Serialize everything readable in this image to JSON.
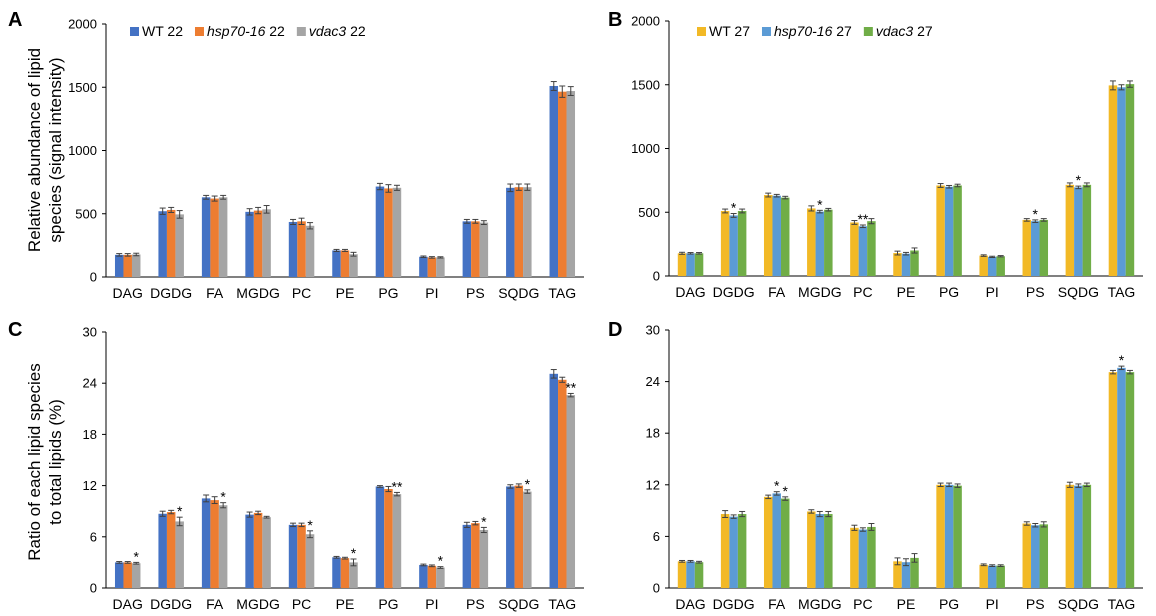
{
  "chart_data": [
    {
      "panel": "A",
      "type": "bar",
      "ylabel_lines": [
        "Relative abundance of lipid",
        "species (signal intensity)"
      ],
      "ylim": [
        0,
        2000
      ],
      "yticks": [
        0,
        500,
        1000,
        1500,
        2000
      ],
      "categories": [
        "DAG",
        "DGDG",
        "FA",
        "MGDG",
        "PC",
        "PE",
        "PG",
        "PI",
        "PS",
        "SQDG",
        "TAG"
      ],
      "legend_position": "top-left",
      "series": [
        {
          "prefix": "WT",
          "suffix": " 22",
          "italic": false,
          "color": "#4472c4",
          "values": [
            175,
            520,
            630,
            515,
            435,
            210,
            715,
            160,
            440,
            705,
            1510
          ],
          "errors": [
            10,
            25,
            15,
            25,
            20,
            8,
            25,
            6,
            15,
            30,
            35
          ],
          "stars": [
            "",
            "",
            "",
            "",
            "",
            "",
            "",
            "",
            "",
            "",
            ""
          ]
        },
        {
          "prefix": "hsp70-16",
          "suffix": " 22",
          "italic": true,
          "color": "#ed7d31",
          "values": [
            175,
            530,
            620,
            525,
            440,
            210,
            700,
            155,
            440,
            710,
            1465
          ],
          "errors": [
            10,
            20,
            20,
            25,
            25,
            8,
            30,
            6,
            15,
            25,
            45
          ],
          "stars": [
            "",
            "",
            "",
            "",
            "",
            "",
            "",
            "",
            "",
            "",
            ""
          ]
        },
        {
          "prefix": "vdac3",
          "suffix": " 22",
          "italic": true,
          "color": "#a5a5a5",
          "values": [
            178,
            495,
            630,
            535,
            405,
            180,
            705,
            155,
            430,
            710,
            1470
          ],
          "errors": [
            10,
            30,
            15,
            30,
            25,
            15,
            20,
            5,
            15,
            25,
            35
          ],
          "stars": [
            "",
            "",
            "",
            "",
            "",
            "",
            "",
            "",
            "",
            "",
            ""
          ]
        }
      ]
    },
    {
      "panel": "B",
      "type": "bar",
      "ylim": [
        0,
        2000
      ],
      "yticks": [
        0,
        500,
        1000,
        1500,
        2000
      ],
      "categories": [
        "DAG",
        "DGDG",
        "FA",
        "MGDG",
        "PC",
        "PE",
        "PG",
        "PI",
        "PS",
        "SQDG",
        "TAG"
      ],
      "legend_position": "top-left",
      "series": [
        {
          "prefix": "WT",
          "suffix": " 27",
          "italic": false,
          "color": "#f2b926",
          "values": [
            178,
            510,
            635,
            530,
            420,
            180,
            710,
            160,
            440,
            715,
            1495
          ],
          "errors": [
            8,
            15,
            15,
            20,
            15,
            15,
            15,
            6,
            10,
            15,
            35
          ],
          "stars": [
            "",
            "",
            "",
            "",
            "",
            "",
            "",
            "",
            "",
            "",
            ""
          ]
        },
        {
          "prefix": "hsp70-16",
          "suffix": " 27",
          "italic": true,
          "color": "#5b9bd5",
          "values": [
            178,
            475,
            630,
            505,
            390,
            175,
            700,
            150,
            430,
            695,
            1480
          ],
          "errors": [
            6,
            15,
            10,
            10,
            10,
            10,
            10,
            5,
            10,
            10,
            20
          ],
          "stars": [
            "",
            "*",
            "",
            "*",
            "**",
            "",
            "",
            "",
            "*",
            "*",
            ""
          ]
        },
        {
          "prefix": "vdac3",
          "suffix": " 27",
          "italic": true,
          "color": "#70ad47",
          "values": [
            178,
            510,
            615,
            520,
            430,
            200,
            710,
            155,
            440,
            715,
            1505
          ],
          "errors": [
            6,
            15,
            10,
            10,
            20,
            20,
            10,
            5,
            10,
            15,
            25
          ],
          "stars": [
            "",
            "",
            "",
            "",
            "",
            "",
            "",
            "",
            "",
            "",
            ""
          ]
        }
      ]
    },
    {
      "panel": "C",
      "type": "bar",
      "ylabel_lines": [
        "Ratio of each lipid species",
        "to total lipids (%)"
      ],
      "ylim": [
        0,
        30
      ],
      "yticks": [
        0,
        6,
        12,
        18,
        24,
        30
      ],
      "categories": [
        "DAG",
        "DGDG",
        "FA",
        "MGDG",
        "PC",
        "PE",
        "PG",
        "PI",
        "PS",
        "SQDG",
        "TAG"
      ],
      "series": [
        {
          "color": "#4472c4",
          "values": [
            3.0,
            8.7,
            10.5,
            8.6,
            7.4,
            3.6,
            11.9,
            2.7,
            7.4,
            11.9,
            25.1
          ],
          "errors": [
            0.1,
            0.3,
            0.4,
            0.3,
            0.2,
            0.1,
            0.1,
            0.1,
            0.3,
            0.2,
            0.5
          ],
          "stars": [
            "",
            "",
            "",
            "",
            "",
            "",
            "",
            "",
            "",
            "",
            ""
          ]
        },
        {
          "color": "#ed7d31",
          "values": [
            3.0,
            8.9,
            10.3,
            8.8,
            7.4,
            3.5,
            11.6,
            2.6,
            7.6,
            12.0,
            24.4
          ],
          "errors": [
            0.1,
            0.2,
            0.4,
            0.2,
            0.2,
            0.1,
            0.3,
            0.1,
            0.2,
            0.2,
            0.3
          ],
          "stars": [
            "",
            "",
            "",
            "",
            "",
            "",
            "",
            "",
            "",
            "",
            ""
          ]
        },
        {
          "color": "#a5a5a5",
          "values": [
            2.9,
            7.8,
            9.7,
            8.3,
            6.3,
            3.0,
            11.0,
            2.4,
            6.8,
            11.3,
            22.6
          ],
          "errors": [
            0.1,
            0.5,
            0.3,
            0.1,
            0.4,
            0.4,
            0.2,
            0.1,
            0.3,
            0.2,
            0.2
          ],
          "stars": [
            "*",
            "*",
            "*",
            "",
            "*",
            "*",
            "**",
            "*",
            "*",
            "*",
            "**"
          ]
        }
      ]
    },
    {
      "panel": "D",
      "type": "bar",
      "ylim": [
        0,
        30
      ],
      "yticks": [
        0,
        6,
        12,
        18,
        24,
        30
      ],
      "categories": [
        "DAG",
        "DGDG",
        "FA",
        "MGDG",
        "PC",
        "PE",
        "PG",
        "PI",
        "PS",
        "SQDG",
        "TAG"
      ],
      "series": [
        {
          "color": "#f2b926",
          "values": [
            3.1,
            8.6,
            10.6,
            8.9,
            7.0,
            3.1,
            12.0,
            2.7,
            7.5,
            12.0,
            25.1
          ],
          "errors": [
            0.1,
            0.4,
            0.2,
            0.2,
            0.3,
            0.4,
            0.2,
            0.1,
            0.2,
            0.3,
            0.2
          ],
          "stars": [
            "",
            "",
            "",
            "",
            "",
            "",
            "",
            "",
            "",
            "",
            ""
          ]
        },
        {
          "color": "#5b9bd5",
          "values": [
            3.1,
            8.3,
            11.0,
            8.6,
            6.8,
            3.0,
            12.0,
            2.6,
            7.3,
            11.9,
            25.6
          ],
          "errors": [
            0.1,
            0.2,
            0.2,
            0.3,
            0.2,
            0.4,
            0.2,
            0.1,
            0.2,
            0.2,
            0.2
          ],
          "stars": [
            "",
            "",
            "*",
            "",
            "",
            "",
            "",
            "",
            "",
            "",
            "*"
          ]
        },
        {
          "color": "#70ad47",
          "values": [
            3.0,
            8.6,
            10.4,
            8.6,
            7.1,
            3.5,
            11.9,
            2.6,
            7.4,
            12.0,
            25.1
          ],
          "errors": [
            0.1,
            0.3,
            0.2,
            0.3,
            0.4,
            0.5,
            0.2,
            0.1,
            0.3,
            0.2,
            0.2
          ],
          "stars": [
            "",
            "",
            "*",
            "",
            "",
            "",
            "",
            "",
            "",
            "",
            ""
          ]
        }
      ]
    }
  ]
}
